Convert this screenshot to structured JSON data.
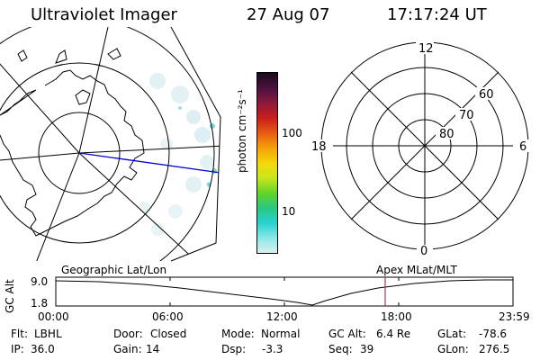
{
  "header": {
    "title": "Ultraviolet Imager",
    "date": "27 Aug 07",
    "time": "17:17:24 UT"
  },
  "geo_map": {
    "label": "Geographic Lat/Lon"
  },
  "colorbar": {
    "unit_label": "photon cm⁻²s⁻¹",
    "tick_labels": [
      "100",
      "10"
    ],
    "colors": [
      "#1a0a1a",
      "#4a1040",
      "#8c1a3c",
      "#c81e1e",
      "#e85a14",
      "#f5a00a",
      "#f5d80a",
      "#c8e61e",
      "#64d228",
      "#28c880",
      "#28d2d2",
      "#8ce6e6",
      "#dcf0f0"
    ]
  },
  "polar_plot": {
    "label": "Apex MLat/MLT",
    "mlt_labels": {
      "top": "12",
      "bottom": "0",
      "left": "18",
      "right": "6"
    },
    "mlat_labels": [
      "60",
      "70",
      "80"
    ]
  },
  "timeline": {
    "ylabel": "GC Alt",
    "yticks": [
      "9.0",
      "1.8"
    ],
    "xticks": [
      "00:00",
      "06:00",
      "12:00",
      "18:00",
      "23:59"
    ],
    "current_time_hours": 17.29,
    "marker_color": "#aa3366"
  },
  "info": {
    "flt_label": "Flt:",
    "flt_value": "LBHL",
    "ip_label": "IP:",
    "ip_value": "36.0",
    "door_label": "Door:",
    "door_value": "Closed",
    "gain_label": "Gain:",
    "gain_value": "14",
    "mode_label": "Mode:",
    "mode_value": "Normal",
    "dsp_label": "Dsp:",
    "dsp_value": "-3.3",
    "gcalt_label": "GC Alt:",
    "gcalt_value": "6.4 Re",
    "seq_label": "Seq:",
    "seq_value": "39",
    "glat_label": "GLat:",
    "glat_value": "-78.6",
    "glon_label": "GLon:",
    "glon_value": "276.5"
  }
}
